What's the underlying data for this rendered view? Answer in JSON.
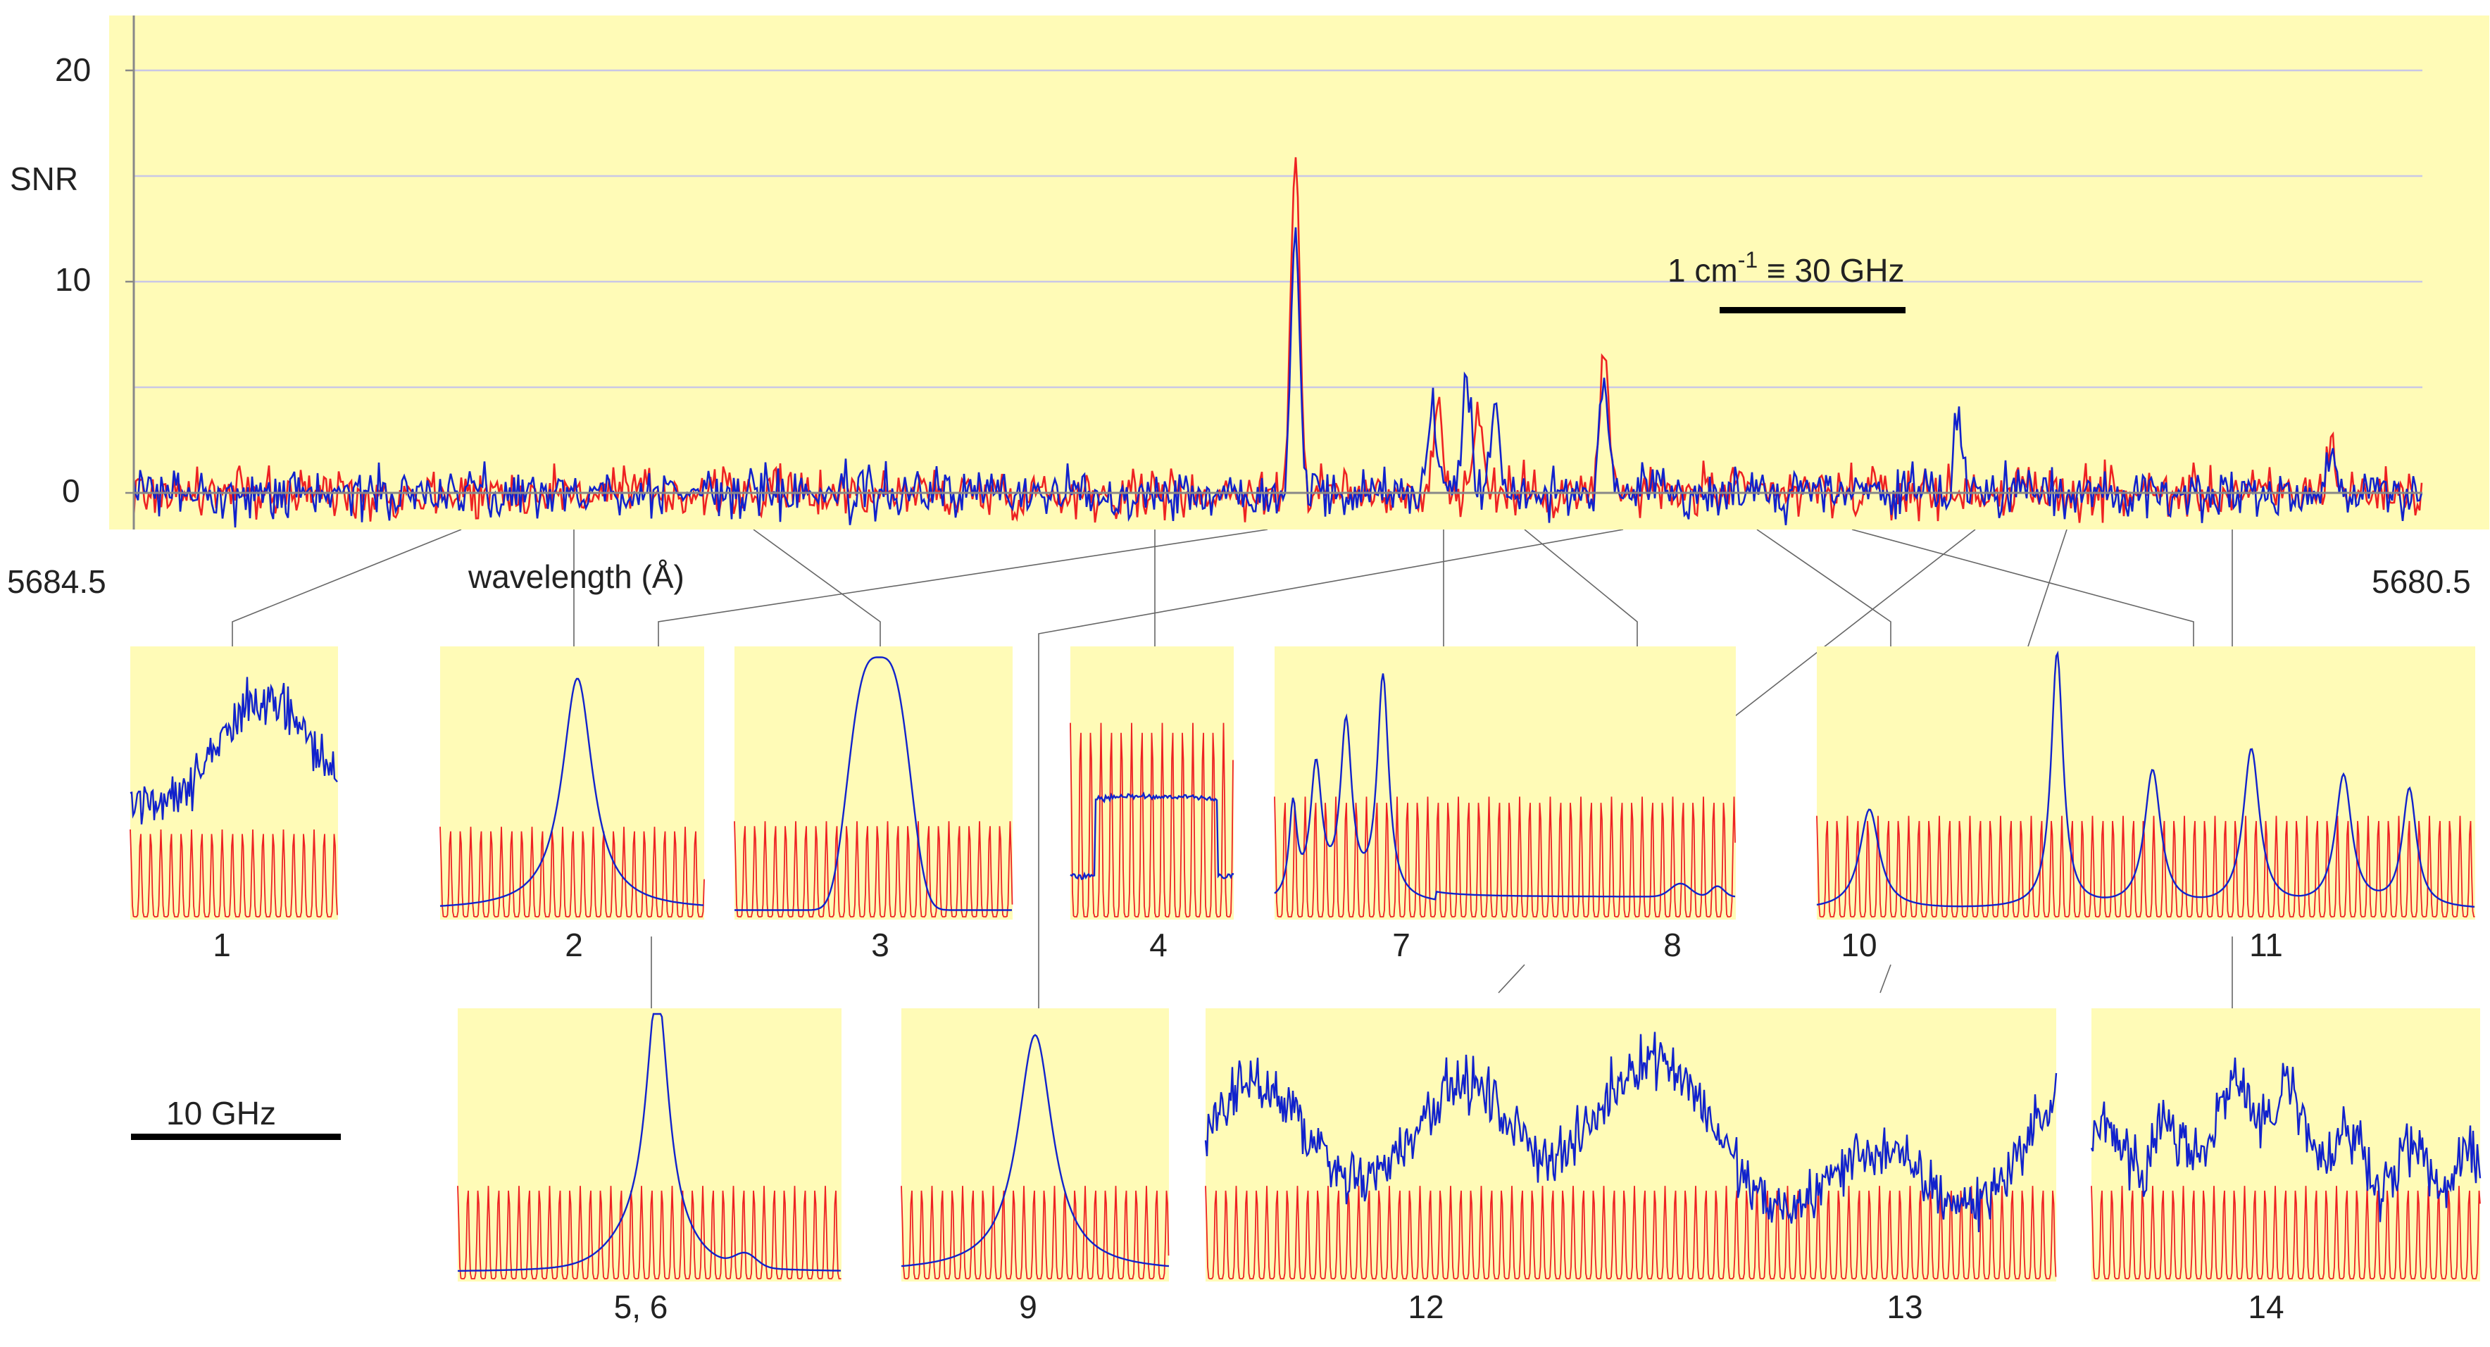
{
  "chart_data": {
    "type": "line",
    "main": {
      "ylabel": "SNR",
      "y_ticks": [
        "0",
        "10",
        "20"
      ],
      "y_tick_values": [
        0,
        10,
        20
      ],
      "ylim": [
        -1.8,
        22
      ],
      "xlim": [
        5684.5,
        5680.5
      ],
      "x_start_label": "5684.5",
      "x_end_label": "5680.5",
      "xlabel": "wavelength (Å)",
      "scale_bar_text": "1 cm",
      "scale_bar_sup": "-1",
      "scale_bar_rest": " ≡ 30 GHz",
      "series": [
        {
          "name": "red trace",
          "color": "#ee2222",
          "peaks": [
            {
              "wavelength": 5682.47,
              "snr": 16.2
            },
            {
              "wavelength": 5682.22,
              "snr": 4.2
            },
            {
              "wavelength": 5682.15,
              "snr": 4.0
            },
            {
              "wavelength": 5681.93,
              "snr": 6.5
            },
            {
              "wavelength": 5680.66,
              "snr": 2.4
            }
          ]
        },
        {
          "name": "blue trace",
          "color": "#1122cc",
          "peaks": [
            {
              "wavelength": 5682.47,
              "snr": 12.5
            },
            {
              "wavelength": 5682.23,
              "snr": 4.5
            },
            {
              "wavelength": 5682.17,
              "snr": 5.8
            },
            {
              "wavelength": 5682.12,
              "snr": 4.5
            },
            {
              "wavelength": 5681.93,
              "snr": 4.5
            },
            {
              "wavelength": 5681.31,
              "snr": 3.7
            },
            {
              "wavelength": 5680.66,
              "snr": 2.2
            }
          ]
        }
      ]
    },
    "insets": [
      {
        "label": "1",
        "shape": "broad-skew",
        "peak_height": 0.55
      },
      {
        "label": "2",
        "shape": "single-peak",
        "peak_height": 0.9
      },
      {
        "label": "3",
        "shape": "single-peak",
        "peak_height": 0.98
      },
      {
        "label": "4",
        "shape": "plateau",
        "peak_height": 0.45
      },
      {
        "label": "7",
        "shape": "multi-peak",
        "peak_height": 0.87
      },
      {
        "label": "8",
        "shape": "small-bumps",
        "peak_height": 0.1
      },
      {
        "label": "10",
        "shape": "single-peak",
        "peak_height": 0.41
      },
      {
        "label": "11",
        "shape": "multi-peak",
        "peak_height": 0.98
      },
      {
        "label": "5, 6",
        "shape": "single-peak",
        "peak_height": 0.98
      },
      {
        "label": "9",
        "shape": "single-peak",
        "peak_height": 0.9
      },
      {
        "label": "12",
        "shape": "noisy-broad",
        "peak_height": 0.95
      },
      {
        "label": "13",
        "shape": "noisy-broad",
        "peak_height": 0.6
      },
      {
        "label": "14",
        "shape": "noisy-broad",
        "peak_height": 0.98
      }
    ],
    "inset_scale_bar": "10 GHz",
    "colors": {
      "panel": "#fffbb7",
      "grid": "#c9c7e6",
      "red": "#ee2222",
      "blue": "#1122cc",
      "axis": "#888888"
    }
  }
}
